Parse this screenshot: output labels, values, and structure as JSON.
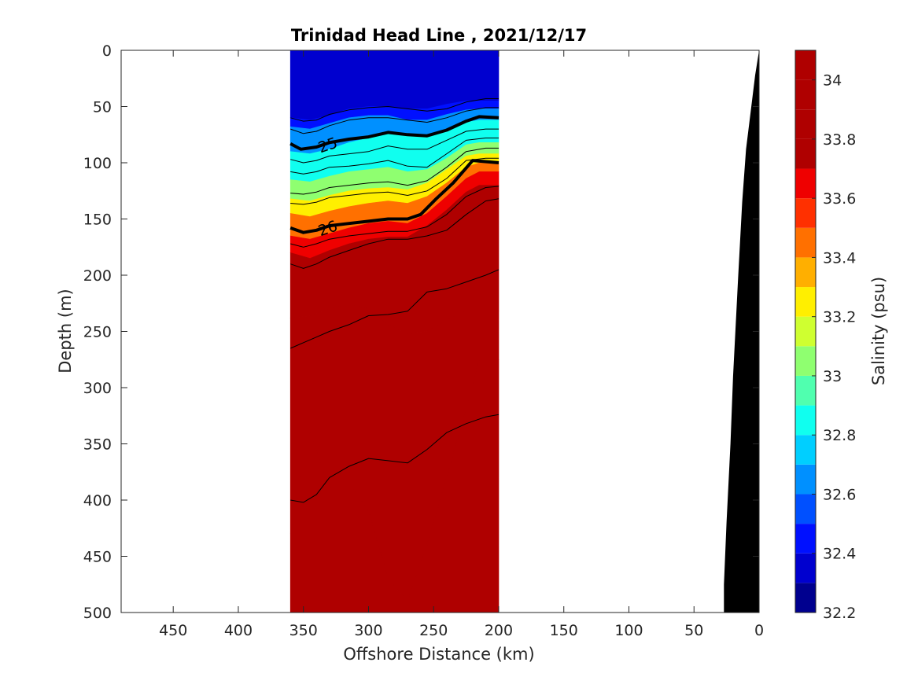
{
  "chart_data": {
    "type": "heatmap",
    "title": "Trinidad Head Line , 2021/12/17",
    "xlabel": "Offshore Distance (km)",
    "ylabel": "Depth (m)",
    "colorbar_label": "Salinity (psu)",
    "xlim": [
      490,
      0
    ],
    "ylim": [
      0,
      500
    ],
    "x_reversed": true,
    "y_reversed": true,
    "xticks": [
      450,
      400,
      350,
      300,
      250,
      200,
      150,
      100,
      50,
      0
    ],
    "yticks": [
      0,
      50,
      100,
      150,
      200,
      250,
      300,
      350,
      400,
      450,
      500
    ],
    "colorbar_range": [
      32.2,
      34.1
    ],
    "colorbar_ticks": [
      32.2,
      32.4,
      32.6,
      32.8,
      33,
      33.2,
      33.4,
      33.6,
      33.8,
      34
    ],
    "colorbar_tick_labels": [
      "32.2",
      "32.4",
      "32.6",
      "32.8",
      "33",
      "33.2",
      "33.4",
      "33.6",
      "33.8",
      "34"
    ],
    "colorbar_levels": [
      32.2,
      32.3,
      32.4,
      32.5,
      32.6,
      32.7,
      32.8,
      32.9,
      33.0,
      33.1,
      33.2,
      33.3,
      33.4,
      33.5,
      33.6,
      33.7,
      33.8,
      33.9,
      34.0,
      34.1
    ],
    "colormap": [
      "#00008f",
      "#0000cf",
      "#0010ff",
      "#0050ff",
      "#0090ff",
      "#00cfff",
      "#10ffef",
      "#50ffaf",
      "#8fff70",
      "#cfff30",
      "#ffef00",
      "#ffaf00",
      "#ff7000",
      "#ff3000",
      "#ef0000",
      "#af0000"
    ],
    "section_x_range": [
      360,
      200
    ],
    "section_x": [
      360,
      345,
      330,
      315,
      300,
      285,
      270,
      255,
      240,
      225,
      215,
      200
    ],
    "salinity_bands": [
      {
        "salinity": 32.35,
        "top": [
          0,
          0,
          0,
          0,
          0,
          0,
          0,
          0,
          0,
          0,
          0,
          0
        ],
        "bottom": [
          60,
          62,
          58,
          52,
          50,
          50,
          52,
          52,
          48,
          45,
          45,
          45
        ]
      },
      {
        "salinity": 32.45,
        "top": [
          60,
          62,
          58,
          52,
          50,
          50,
          52,
          52,
          48,
          45,
          45,
          45
        ],
        "bottom": [
          68,
          70,
          65,
          60,
          58,
          58,
          62,
          62,
          57,
          53,
          52,
          52
        ]
      },
      {
        "salinity": 32.6,
        "top": [
          68,
          70,
          65,
          60,
          58,
          58,
          62,
          62,
          57,
          53,
          52,
          52
        ],
        "bottom": [
          90,
          92,
          88,
          82,
          78,
          74,
          76,
          76,
          70,
          64,
          62,
          62
        ]
      },
      {
        "salinity": 32.8,
        "top": [
          90,
          92,
          88,
          82,
          78,
          74,
          76,
          76,
          70,
          64,
          62,
          62
        ],
        "bottom": [
          115,
          117,
          112,
          108,
          106,
          104,
          108,
          106,
          96,
          84,
          82,
          82
        ]
      },
      {
        "salinity": 33.0,
        "top": [
          115,
          117,
          112,
          108,
          106,
          104,
          108,
          106,
          96,
          84,
          82,
          82
        ],
        "bottom": [
          132,
          134,
          129,
          125,
          123,
          122,
          124,
          118,
          106,
          94,
          92,
          92
        ]
      },
      {
        "salinity": 33.25,
        "top": [
          132,
          134,
          129,
          125,
          123,
          122,
          124,
          118,
          106,
          94,
          92,
          92
        ],
        "bottom": [
          145,
          148,
          143,
          139,
          136,
          134,
          136,
          130,
          118,
          104,
          100,
          100
        ]
      },
      {
        "salinity": 33.45,
        "top": [
          145,
          148,
          143,
          139,
          136,
          134,
          136,
          130,
          118,
          104,
          100,
          100
        ],
        "bottom": [
          165,
          168,
          163,
          158,
          154,
          152,
          154,
          145,
          130,
          114,
          108,
          108
        ]
      },
      {
        "salinity": 33.65,
        "top": [
          165,
          168,
          163,
          158,
          154,
          152,
          154,
          145,
          130,
          114,
          108,
          108
        ],
        "bottom": [
          180,
          185,
          178,
          172,
          168,
          166,
          166,
          156,
          142,
          126,
          120,
          120
        ]
      },
      {
        "salinity": 33.85,
        "top": [
          180,
          185,
          178,
          172,
          168,
          166,
          166,
          156,
          142,
          126,
          120,
          120
        ],
        "bottom": [
          238,
          236,
          230,
          226,
          230,
          244,
          252,
          250,
          240,
          232,
          232,
          232
        ]
      },
      {
        "salinity": 33.95,
        "top": [
          238,
          236,
          230,
          226,
          230,
          244,
          252,
          250,
          240,
          232,
          232,
          232
        ],
        "bottom": [
          430,
          340,
          390,
          385,
          410,
          470,
          490,
          440,
          380,
          320,
          275,
          275
        ]
      },
      {
        "salinity": 34.05,
        "top": [
          430,
          340,
          390,
          385,
          410,
          470,
          490,
          440,
          380,
          320,
          275,
          275
        ],
        "bottom": [
          500,
          500,
          500,
          500,
          500,
          500,
          500,
          500,
          500,
          500,
          500,
          500
        ]
      }
    ],
    "density_contours": [
      {
        "level": "",
        "x": [
          360,
          350,
          340,
          330,
          315,
          300,
          285,
          270,
          255,
          240,
          225,
          210,
          200
        ],
        "depth": [
          60,
          63,
          62,
          57,
          53,
          51,
          50,
          52,
          54,
          52,
          46,
          43,
          43
        ]
      },
      {
        "level": "",
        "x": [
          360,
          350,
          340,
          330,
          315,
          300,
          285,
          270,
          255,
          240,
          225,
          210,
          200
        ],
        "depth": [
          70,
          74,
          72,
          67,
          62,
          60,
          60,
          62,
          64,
          60,
          54,
          51,
          51
        ]
      },
      {
        "level": "25",
        "x": [
          360,
          352,
          340,
          330,
          315,
          300,
          285,
          270,
          255,
          240,
          225,
          215,
          200
        ],
        "depth": [
          83,
          88,
          86,
          82,
          79,
          77,
          73,
          75,
          76,
          71,
          63,
          59,
          60
        ]
      },
      {
        "level": "",
        "x": [
          360,
          350,
          340,
          330,
          315,
          300,
          285,
          270,
          255,
          240,
          225,
          210,
          200
        ],
        "depth": [
          97,
          100,
          98,
          94,
          92,
          90,
          85,
          88,
          88,
          80,
          72,
          70,
          70
        ]
      },
      {
        "level": "",
        "x": [
          360,
          350,
          340,
          330,
          315,
          300,
          285,
          270,
          255,
          240,
          225,
          210,
          200
        ],
        "depth": [
          108,
          110,
          108,
          104,
          103,
          101,
          98,
          103,
          104,
          92,
          80,
          78,
          78
        ]
      },
      {
        "level": "",
        "x": [
          360,
          350,
          340,
          330,
          315,
          300,
          285,
          270,
          255,
          240,
          225,
          210,
          200
        ],
        "depth": [
          127,
          128,
          126,
          122,
          120,
          118,
          117,
          120,
          116,
          104,
          90,
          87,
          87
        ]
      },
      {
        "level": "",
        "x": [
          360,
          350,
          340,
          330,
          315,
          300,
          285,
          270,
          255,
          240,
          225,
          210,
          200
        ],
        "depth": [
          136,
          137,
          135,
          131,
          129,
          127,
          126,
          129,
          125,
          114,
          98,
          96,
          96
        ]
      },
      {
        "level": "26",
        "x": [
          360,
          350,
          340,
          330,
          315,
          300,
          285,
          270,
          260,
          248,
          235,
          220,
          200
        ],
        "depth": [
          158,
          162,
          160,
          156,
          154,
          152,
          150,
          150,
          146,
          132,
          118,
          98,
          100
        ]
      },
      {
        "level": "",
        "x": [
          360,
          350,
          340,
          330,
          315,
          300,
          285,
          270,
          255,
          240,
          225,
          210,
          200
        ],
        "depth": [
          172,
          175,
          172,
          168,
          165,
          163,
          161,
          161,
          157,
          146,
          130,
          122,
          121
        ]
      },
      {
        "level": "",
        "x": [
          360,
          350,
          340,
          330,
          315,
          300,
          285,
          270,
          255,
          240,
          225,
          210,
          200
        ],
        "depth": [
          190,
          194,
          190,
          184,
          178,
          172,
          168,
          168,
          165,
          160,
          146,
          134,
          132
        ]
      },
      {
        "level": "",
        "x": [
          360,
          350,
          340,
          330,
          315,
          300,
          285,
          270,
          255,
          240,
          225,
          210,
          200
        ],
        "depth": [
          265,
          260,
          255,
          250,
          244,
          236,
          235,
          232,
          215,
          212,
          206,
          200,
          195
        ]
      },
      {
        "level": "",
        "x": [
          360,
          350,
          340,
          330,
          315,
          300,
          285,
          270,
          255,
          240,
          225,
          210,
          200
        ],
        "depth": [
          400,
          402,
          395,
          380,
          370,
          363,
          365,
          367,
          355,
          340,
          332,
          326,
          324
        ]
      }
    ],
    "bathymetry": {
      "x": [
        490,
        0,
        0,
        3,
        6,
        10,
        13,
        16,
        20,
        22,
        25,
        27,
        27,
        490
      ],
      "depth": [
        500,
        500,
        0,
        22,
        50,
        88,
        135,
        200,
        290,
        350,
        420,
        475,
        500,
        500
      ],
      "color": "#000000"
    }
  }
}
